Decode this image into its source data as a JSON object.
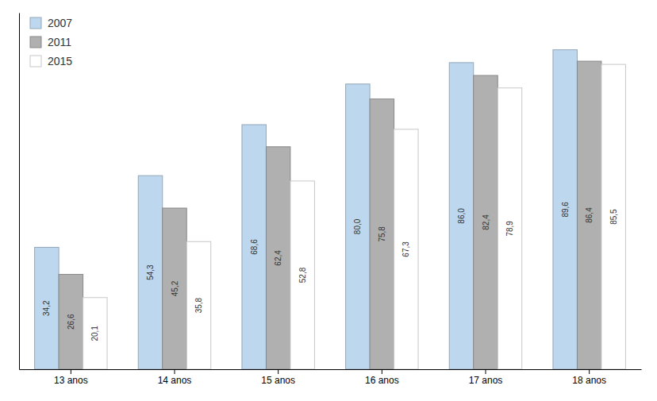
{
  "chart_data": {
    "type": "bar",
    "categories": [
      "13 anos",
      "14 anos",
      "15 anos",
      "16 anos",
      "17 anos",
      "18 anos"
    ],
    "series": [
      {
        "name": "2007",
        "color": "#bdd7ee",
        "values": [
          34.2,
          54.3,
          68.6,
          80.0,
          86.0,
          89.6
        ],
        "value_labels": [
          "34,2",
          "54,3",
          "68,6",
          "80,0",
          "86,0",
          "89,6"
        ]
      },
      {
        "name": "2011",
        "color": "#b0b0b0",
        "values": [
          26.6,
          45.2,
          62.4,
          75.8,
          82.4,
          86.4
        ],
        "value_labels": [
          "26,6",
          "45,2",
          "62,4",
          "75,8",
          "82,4",
          "86,4"
        ]
      },
      {
        "name": "2015",
        "color": "#ffffff",
        "values": [
          20.1,
          35.8,
          52.8,
          67.3,
          78.9,
          85.5
        ],
        "value_labels": [
          "20,1",
          "35,8",
          "52,8",
          "67,3",
          "78,9",
          "85,5"
        ]
      }
    ],
    "ylim": [
      0,
      100
    ],
    "tick_labels": "x",
    "data_labels": true,
    "legend": "upper left"
  }
}
